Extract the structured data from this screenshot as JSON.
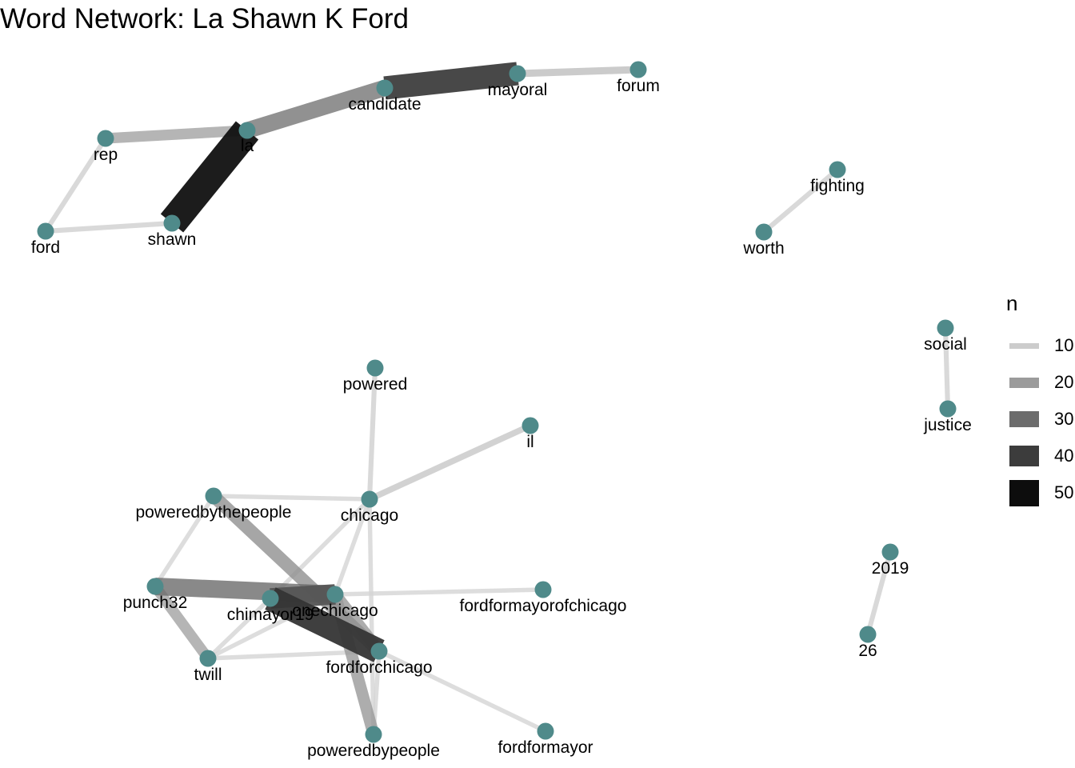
{
  "title": "Word Network: La Shawn K Ford",
  "colors": {
    "node": "#4f8a8a",
    "background": "#ffffff"
  },
  "legend": {
    "title": "n",
    "entries": [
      {
        "label": "10",
        "n": 10,
        "color": "#cccccc"
      },
      {
        "label": "20",
        "n": 20,
        "color": "#9b9b9b"
      },
      {
        "label": "30",
        "n": 30,
        "color": "#6c6c6c"
      },
      {
        "label": "40",
        "n": 40,
        "color": "#3c3c3c"
      },
      {
        "label": "50",
        "n": 50,
        "color": "#0d0d0d"
      }
    ]
  },
  "nodes": [
    {
      "id": "la",
      "label": "la"
    },
    {
      "id": "shawn",
      "label": "shawn"
    },
    {
      "id": "rep",
      "label": "rep"
    },
    {
      "id": "ford",
      "label": "ford"
    },
    {
      "id": "candidate",
      "label": "candidate"
    },
    {
      "id": "mayoral",
      "label": "mayoral"
    },
    {
      "id": "forum",
      "label": "forum"
    },
    {
      "id": "fighting",
      "label": "fighting"
    },
    {
      "id": "worth",
      "label": "worth"
    },
    {
      "id": "social",
      "label": "social"
    },
    {
      "id": "justice",
      "label": "justice"
    },
    {
      "id": "powered",
      "label": "powered"
    },
    {
      "id": "il",
      "label": "il"
    },
    {
      "id": "chicago",
      "label": "chicago"
    },
    {
      "id": "poweredbythepeople",
      "label": "poweredbythepeople"
    },
    {
      "id": "punch32",
      "label": "punch32"
    },
    {
      "id": "chimayor19",
      "label": "chimayor19"
    },
    {
      "id": "onechicago",
      "label": "onechicago"
    },
    {
      "id": "fordformayorofchicago",
      "label": "fordformayorofchicago"
    },
    {
      "id": "twill",
      "label": "twill"
    },
    {
      "id": "fordforchicago",
      "label": "fordforchicago"
    },
    {
      "id": "poweredbypeople",
      "label": "poweredbypeople"
    },
    {
      "id": "fordformayor",
      "label": "fordformayor"
    },
    {
      "id": "2019",
      "label": "2019"
    },
    {
      "id": "26",
      "label": "26"
    }
  ],
  "edges": [
    {
      "source": "la",
      "target": "shawn",
      "n": 50
    },
    {
      "source": "candidate",
      "target": "mayoral",
      "n": 40
    },
    {
      "source": "la",
      "target": "candidate",
      "n": 28
    },
    {
      "source": "rep",
      "target": "la",
      "n": 18
    },
    {
      "source": "mayoral",
      "target": "forum",
      "n": 12
    },
    {
      "source": "rep",
      "target": "ford",
      "n": 8
    },
    {
      "source": "ford",
      "target": "shawn",
      "n": 8
    },
    {
      "source": "fighting",
      "target": "worth",
      "n": 8
    },
    {
      "source": "social",
      "target": "justice",
      "n": 8
    },
    {
      "source": "2019",
      "target": "26",
      "n": 8
    },
    {
      "source": "powered",
      "target": "chicago",
      "n": 8
    },
    {
      "source": "il",
      "target": "chicago",
      "n": 10
    },
    {
      "source": "poweredbythepeople",
      "target": "chicago",
      "n": 7
    },
    {
      "source": "poweredbythepeople",
      "target": "fordforchicago",
      "n": 22
    },
    {
      "source": "poweredbythepeople",
      "target": "punch32",
      "n": 7
    },
    {
      "source": "chicago",
      "target": "chimayor19",
      "n": 7
    },
    {
      "source": "chicago",
      "target": "onechicago",
      "n": 7
    },
    {
      "source": "chicago",
      "target": "poweredbypeople",
      "n": 7
    },
    {
      "source": "punch32",
      "target": "onechicago",
      "n": 30
    },
    {
      "source": "punch32",
      "target": "twill",
      "n": 18
    },
    {
      "source": "chimayor19",
      "target": "onechicago",
      "n": 35
    },
    {
      "source": "chimayor19",
      "target": "fordforchicago",
      "n": 42
    },
    {
      "source": "chimayor19",
      "target": "twill",
      "n": 7
    },
    {
      "source": "onechicago",
      "target": "fordformayorofchicago",
      "n": 7
    },
    {
      "source": "onechicago",
      "target": "fordforchicago",
      "n": 20
    },
    {
      "source": "onechicago",
      "target": "poweredbypeople",
      "n": 20
    },
    {
      "source": "onechicago",
      "target": "twill",
      "n": 7
    },
    {
      "source": "twill",
      "target": "fordforchicago",
      "n": 7
    },
    {
      "source": "fordforchicago",
      "target": "fordformayor",
      "n": 7
    },
    {
      "source": "fordforchicago",
      "target": "poweredbypeople",
      "n": 7
    }
  ]
}
